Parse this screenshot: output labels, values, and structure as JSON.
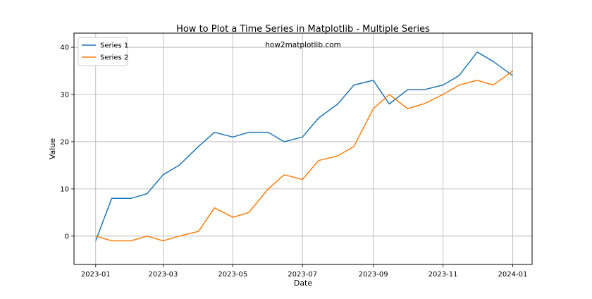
{
  "chart_data": {
    "type": "line",
    "title": "How to Plot a Time Series in Matplotlib - Multiple Series",
    "annotation": "how2matplotlib.com",
    "xlabel": "Date",
    "ylabel": "Value",
    "x_ticks": [
      "2023-01",
      "2023-03",
      "2023-05",
      "2023-07",
      "2023-09",
      "2023-11",
      "2024-01"
    ],
    "y_ticks": [
      0,
      10,
      20,
      30,
      40
    ],
    "ylim": [
      -6,
      43
    ],
    "xlim": [
      "2022-12-13",
      "2024-01-18"
    ],
    "grid": true,
    "legend_position": "top-left",
    "x": [
      "2023-01-01",
      "2023-01-15",
      "2023-02-01",
      "2023-02-15",
      "2023-03-01",
      "2023-03-15",
      "2023-04-01",
      "2023-04-15",
      "2023-05-01",
      "2023-05-15",
      "2023-06-01",
      "2023-06-15",
      "2023-07-01",
      "2023-07-15",
      "2023-08-01",
      "2023-08-15",
      "2023-09-01",
      "2023-09-15",
      "2023-10-01",
      "2023-10-15",
      "2023-11-01",
      "2023-11-15",
      "2023-12-01",
      "2023-12-15",
      "2024-01-01"
    ],
    "series": [
      {
        "name": "Series 1",
        "color": "#1f77b4",
        "values": [
          -1,
          8,
          8,
          9,
          13,
          15,
          19,
          22,
          21,
          22,
          22,
          20,
          21,
          25,
          28,
          32,
          33,
          28,
          31,
          31,
          32,
          34,
          39,
          37,
          34
        ]
      },
      {
        "name": "Series 2",
        "color": "#ff7f0e",
        "values": [
          0,
          -1,
          -1,
          0,
          -1,
          0,
          1,
          6,
          4,
          5,
          10,
          13,
          12,
          16,
          17,
          19,
          27,
          30,
          27,
          28,
          30,
          32,
          33,
          32,
          35
        ]
      }
    ]
  }
}
